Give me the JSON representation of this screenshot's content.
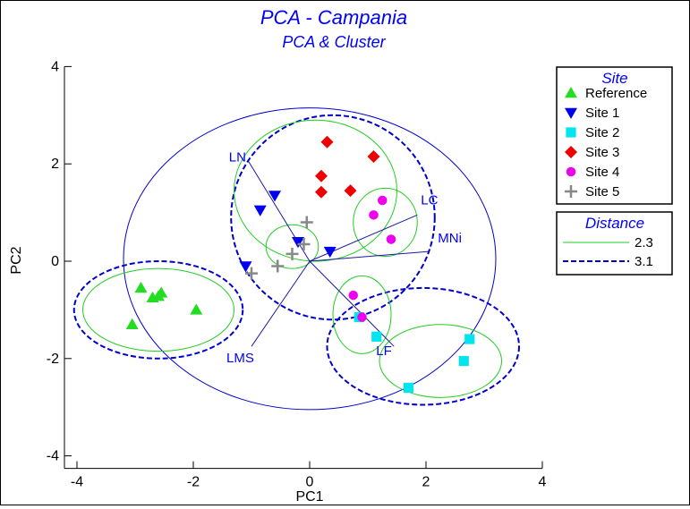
{
  "chart_data": {
    "type": "scatter",
    "title": "PCA - Campania",
    "subtitle": "PCA & Cluster",
    "xlabel": "PC1",
    "ylabel": "PC2",
    "xlim": [
      -4,
      4
    ],
    "ylim": [
      -4,
      4
    ],
    "xticks": [
      -4,
      -2,
      0,
      2,
      4
    ],
    "yticks": [
      -4,
      -2,
      0,
      2,
      4
    ],
    "xtick_labels": [
      "-4",
      "-2",
      "0",
      "2",
      "4"
    ],
    "ytick_labels": [
      "-4",
      "-2",
      "0",
      "2",
      "4"
    ],
    "grid": false,
    "legend_placement": "right",
    "series": [
      {
        "name": "Reference",
        "marker": "triangle-up",
        "color": "#22dd22",
        "points": [
          [
            -3.05,
            -1.3
          ],
          [
            -2.9,
            -0.55
          ],
          [
            -2.7,
            -0.75
          ],
          [
            -2.55,
            -0.65
          ],
          [
            -2.6,
            -0.72
          ],
          [
            -1.95,
            -1.0
          ]
        ]
      },
      {
        "name": "Site 1",
        "marker": "triangle-down",
        "color": "#0000ee",
        "points": [
          [
            -1.1,
            -0.1
          ],
          [
            -0.85,
            1.05
          ],
          [
            -0.6,
            1.35
          ],
          [
            -0.2,
            0.4
          ],
          [
            0.35,
            0.2
          ]
        ]
      },
      {
        "name": "Site 2",
        "marker": "square",
        "color": "#00e5ee",
        "points": [
          [
            0.85,
            -1.15
          ],
          [
            1.15,
            -1.55
          ],
          [
            1.7,
            -2.6
          ],
          [
            2.65,
            -2.05
          ],
          [
            2.75,
            -1.6
          ]
        ]
      },
      {
        "name": "Site 3",
        "marker": "diamond",
        "color": "#ee0000",
        "points": [
          [
            0.3,
            2.45
          ],
          [
            0.2,
            1.75
          ],
          [
            0.2,
            1.42
          ],
          [
            0.7,
            1.45
          ],
          [
            1.1,
            2.15
          ]
        ]
      },
      {
        "name": "Site 4",
        "marker": "circle",
        "color": "#ee00ee",
        "points": [
          [
            0.75,
            -0.7
          ],
          [
            0.9,
            -1.15
          ],
          [
            1.1,
            0.95
          ],
          [
            1.25,
            1.25
          ],
          [
            1.4,
            0.45
          ]
        ]
      },
      {
        "name": "Site 5",
        "marker": "plus",
        "color": "#888888",
        "points": [
          [
            -1.0,
            -0.25
          ],
          [
            -0.55,
            -0.1
          ],
          [
            -0.3,
            0.15
          ],
          [
            -0.1,
            0.35
          ],
          [
            -0.05,
            0.8
          ]
        ]
      }
    ],
    "loadings": [
      {
        "label": "LN",
        "x": -1.05,
        "y": 2.05
      },
      {
        "label": "LC",
        "x": 1.85,
        "y": 0.95
      },
      {
        "label": "MNi",
        "x": 2.05,
        "y": 0.2
      },
      {
        "label": "LMS",
        "x": -1.0,
        "y": -1.75
      },
      {
        "label": "LF",
        "x": 1.45,
        "y": -1.75
      }
    ],
    "clusters": [
      {
        "level": "3.1",
        "cx": 0.0,
        "cy": 0.05,
        "rx": 3.2,
        "ry": 3.1,
        "color": "#0000cc",
        "style": "solid"
      },
      {
        "level": "3.1",
        "cx": -2.6,
        "cy": -1.0,
        "rx": 1.45,
        "ry": 1.0,
        "color": "#0000cc",
        "style": "dashed"
      },
      {
        "level": "3.1",
        "cx": 0.4,
        "cy": 0.9,
        "rx": 1.75,
        "ry": 2.1,
        "color": "#0000cc",
        "style": "dashed"
      },
      {
        "level": "3.1",
        "cx": 1.95,
        "cy": -1.75,
        "rx": 1.65,
        "ry": 1.2,
        "color": "#0000cc",
        "style": "dashed"
      },
      {
        "level": "2.3",
        "cx": -2.6,
        "cy": -1.0,
        "rx": 1.3,
        "ry": 0.85,
        "color": "#22cc22",
        "style": "solid"
      },
      {
        "level": "2.3",
        "cx": 0.1,
        "cy": 1.45,
        "rx": 1.4,
        "ry": 1.45,
        "color": "#22cc22",
        "style": "solid"
      },
      {
        "level": "2.3",
        "cx": -0.3,
        "cy": 0.3,
        "rx": 0.45,
        "ry": 0.45,
        "color": "#22cc22",
        "style": "solid"
      },
      {
        "level": "2.3",
        "cx": 1.3,
        "cy": 0.8,
        "rx": 0.55,
        "ry": 0.7,
        "color": "#22cc22",
        "style": "solid"
      },
      {
        "level": "2.3",
        "cx": 0.9,
        "cy": -1.1,
        "rx": 0.5,
        "ry": 0.8,
        "color": "#22cc22",
        "style": "solid"
      },
      {
        "level": "2.3",
        "cx": 2.25,
        "cy": -2.05,
        "rx": 1.05,
        "ry": 0.75,
        "color": "#22cc22",
        "style": "solid"
      }
    ],
    "legend_site_title": "Site",
    "legend_distance_title": "Distance",
    "legend_distance": [
      {
        "label": "2.3",
        "color": "#22cc22",
        "style": "solid"
      },
      {
        "label": "3.1",
        "color": "#0000cc",
        "style": "dashed"
      }
    ]
  }
}
